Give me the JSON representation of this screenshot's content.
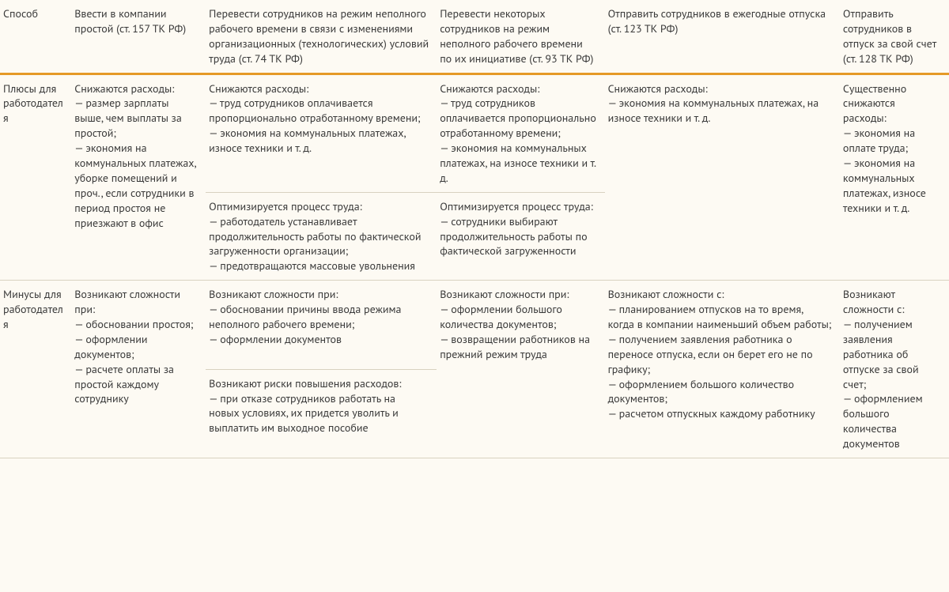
{
  "header": {
    "c0": "Способ",
    "c1": "Ввести в компании простой (ст. 157 ТК РФ)",
    "c2": "Перевести сотрудников на режим неполного рабочего времени в связи с изменениями организационных (технологических) условий труда (ст. 74 ТК РФ)",
    "c3": "Перевести некоторых сотрудников на режим неполного рабочего времени по их инициативе (ст. 93 ТК РФ)",
    "c4": "Отправить сотрудников в ежегодные отпуска (ст. 123 ТК РФ)",
    "c5": "Отправить сотрудников в отпуск за свой счет (ст. 128 ТК РФ)"
  },
  "plus": {
    "label": "Плюсы для работодателя",
    "c1": "Снижаются расходы:\n— размер зарплаты выше, чем выплаты за простой;\n— экономия на коммунальных платежах, уборке помещений и проч., если сотрудники в период простоя не приезжают в офис",
    "c2a": "Снижаются расходы:\n— труд сотрудников оплачивается пропорционально отработанному времени;\n— экономия на коммунальных платежах, износе техники и т. д.",
    "c2b": "Оптимизируется процесс труда:\n— работодатель устанавливает продолжительность работы по фактической загруженности организации;\n— предотвращаются массовые увольнения",
    "c3a": "Снижаются расходы:\n— труд сотрудников оплачивается пропорционально отработанному времени;\n— экономия на коммунальных платежах, на износе техники и т. д.",
    "c3b": "Оптимизируется процесс труда:\n— сотрудники выбирают продолжительность работы по фактической загруженности",
    "c4": "Снижаются расходы:\n— экономия на коммунальных платежах, на износе техники и т. д.",
    "c5": "Существенно снижаются расходы:\n— экономия на оплате труда;\n— экономия на коммунальных платежах, износе техники и т. д."
  },
  "minus": {
    "label": "Минусы для работодателя",
    "c1": "Возникают сложности при:\n— обосновании простоя;\n— оформлении документов;\n— расчете оплаты за простой каждому сотруднику",
    "c2a": "Возникают сложности при:\n— обосновании причины ввода режима неполного рабочего времени;\n— оформлении документов",
    "c2b": "Возникают риски повышения расходов:\n— при отказе сотрудников работать на новых условиях, их придется уволить и выплатить им выходное пособие",
    "c3": "Возникают сложности при:\n— оформлении большого количества документов;\n— возвращении работников на прежний режим труда",
    "c4": "Возникают сложности с:\n— планированием отпусков на то время, когда в компании наименьший объем работы;\n— получением заявления работника о переносе отпуска, если он берет его не по графику;\n— оформлением большого количество документов;\n— расчетом отпускных каждому работнику",
    "c5": "Возникают сложности с:\n— получением заявления работника об отпуске за свой счет;\n— оформлением большого количества документов"
  }
}
